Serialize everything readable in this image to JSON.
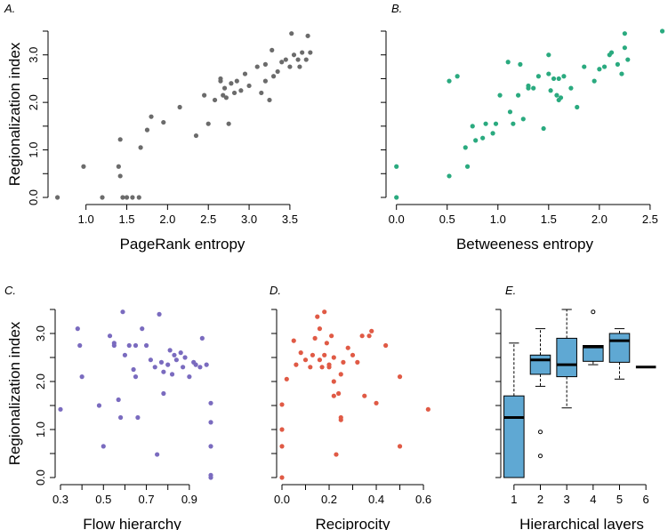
{
  "colors": {
    "pagerank": "#6b6b6b",
    "betweenness": "#2aaa7f",
    "flow": "#7a6bbf",
    "reciprocity": "#e05a45",
    "box_fill": "#5fa8d3"
  },
  "chart_data": [
    {
      "type": "scatter",
      "panel_label": "A.",
      "xlabel": "PageRank entropy",
      "ylabel": "Regionalization index",
      "xlim": [
        0.6,
        3.85
      ],
      "ylim": [
        0,
        3.5
      ],
      "x_ticks": [
        "1.0",
        "1.5",
        "2.0",
        "2.5",
        "3.0",
        "3.5"
      ],
      "y_ticks": [
        "0.0",
        "1.0",
        "2.0",
        "3.0"
      ],
      "x": [
        0.65,
        0.97,
        1.2,
        1.4,
        1.42,
        1.45,
        1.5,
        1.57,
        1.65,
        1.42,
        1.67,
        1.75,
        1.8,
        1.95,
        2.15,
        2.35,
        2.45,
        2.5,
        2.58,
        2.65,
        2.68,
        2.7,
        2.72,
        2.75,
        2.78,
        2.82,
        2.85,
        2.9,
        2.95,
        3.0,
        3.1,
        3.15,
        3.2,
        3.25,
        3.28,
        3.3,
        3.35,
        3.4,
        3.45,
        3.5,
        3.52,
        3.55,
        3.6,
        3.62,
        3.65,
        3.7,
        3.72,
        3.75,
        3.2,
        2.65
      ],
      "y": [
        0.0,
        0.65,
        0.0,
        0.65,
        0.45,
        0.0,
        0.0,
        0.0,
        0.0,
        1.22,
        1.05,
        1.42,
        1.7,
        1.58,
        1.9,
        1.3,
        2.15,
        1.55,
        2.05,
        2.45,
        2.15,
        2.3,
        2.1,
        1.55,
        2.4,
        2.2,
        2.45,
        2.25,
        2.6,
        2.35,
        2.75,
        2.2,
        2.45,
        2.05,
        3.1,
        2.55,
        2.65,
        2.85,
        2.9,
        2.75,
        3.45,
        3.0,
        2.9,
        2.75,
        3.05,
        2.9,
        3.4,
        3.05,
        2.8,
        2.5
      ]
    },
    {
      "type": "scatter",
      "panel_label": "B.",
      "xlabel": "Betweeness entropy",
      "ylabel": "",
      "xlim": [
        -0.05,
        2.65
      ],
      "ylim": [
        0,
        3.5
      ],
      "x_ticks": [
        "0.0",
        "0.5",
        "1.0",
        "1.5",
        "2.0",
        "2.5"
      ],
      "y_ticks": [],
      "x": [
        0.0,
        0.0,
        0.52,
        0.52,
        0.6,
        0.68,
        0.7,
        0.75,
        0.78,
        0.85,
        0.88,
        0.95,
        0.98,
        1.02,
        1.1,
        1.12,
        1.15,
        1.2,
        1.22,
        1.25,
        1.3,
        1.35,
        1.4,
        1.45,
        1.5,
        1.52,
        1.55,
        1.58,
        1.6,
        1.62,
        1.65,
        1.72,
        1.78,
        1.85,
        1.95,
        2.0,
        2.05,
        2.1,
        2.12,
        2.18,
        2.22,
        2.25,
        2.28,
        2.62,
        1.5,
        1.3,
        1.6,
        2.25
      ],
      "y": [
        0.0,
        0.65,
        0.45,
        2.45,
        2.55,
        1.05,
        0.65,
        1.5,
        1.2,
        1.25,
        1.55,
        1.35,
        1.55,
        2.15,
        2.85,
        1.8,
        1.55,
        2.15,
        2.8,
        1.65,
        2.35,
        2.3,
        2.55,
        1.45,
        3.0,
        2.25,
        2.5,
        2.15,
        2.05,
        2.1,
        2.55,
        2.3,
        1.9,
        2.75,
        2.45,
        2.7,
        2.75,
        3.0,
        3.05,
        2.8,
        2.6,
        3.45,
        2.9,
        3.5,
        2.6,
        2.3,
        2.5,
        3.15
      ]
    },
    {
      "type": "scatter",
      "panel_label": "C.",
      "xlabel": "Flow hierarchy",
      "ylabel": "Regionalization index",
      "xlim": [
        0.3,
        1.0
      ],
      "ylim": [
        0,
        3.5
      ],
      "x_ticks": [
        "0.3",
        "0.5",
        "0.7",
        "0.9"
      ],
      "y_ticks": [
        "0.0",
        "1.0",
        "2.0",
        "3.0"
      ],
      "x": [
        0.3,
        0.38,
        0.39,
        0.4,
        0.48,
        0.5,
        0.53,
        0.55,
        0.57,
        0.58,
        0.59,
        0.6,
        0.62,
        0.64,
        0.65,
        0.66,
        0.68,
        0.7,
        0.72,
        0.74,
        0.75,
        0.76,
        0.77,
        0.78,
        0.78,
        0.8,
        0.81,
        0.82,
        0.83,
        0.84,
        0.86,
        0.87,
        0.88,
        0.9,
        0.92,
        0.93,
        0.95,
        0.96,
        0.98,
        1.0,
        1.0,
        1.0,
        1.0,
        1.0,
        0.65,
        0.55
      ],
      "y": [
        1.42,
        3.1,
        2.75,
        2.1,
        1.5,
        0.65,
        2.95,
        2.75,
        1.62,
        1.25,
        3.45,
        2.55,
        2.75,
        2.25,
        2.1,
        1.25,
        3.1,
        2.75,
        2.45,
        2.3,
        0.48,
        3.4,
        2.4,
        2.2,
        1.75,
        2.35,
        2.65,
        2.15,
        2.55,
        2.45,
        2.6,
        2.3,
        2.5,
        2.1,
        2.4,
        2.35,
        2.3,
        2.9,
        2.35,
        1.55,
        1.15,
        0.65,
        0.05,
        0.0,
        2.75,
        2.8
      ]
    },
    {
      "type": "scatter",
      "panel_label": "D.",
      "xlabel": "Reciprocity",
      "ylabel": "",
      "xlim": [
        0.0,
        0.63
      ],
      "ylim": [
        0,
        3.5
      ],
      "x_ticks": [
        "0.0",
        "0.2",
        "0.4",
        "0.6"
      ],
      "y_ticks": [],
      "x": [
        0.0,
        0.0,
        0.0,
        0.0,
        0.02,
        0.05,
        0.06,
        0.08,
        0.1,
        0.12,
        0.13,
        0.14,
        0.15,
        0.16,
        0.17,
        0.18,
        0.19,
        0.2,
        0.21,
        0.22,
        0.22,
        0.23,
        0.24,
        0.25,
        0.25,
        0.26,
        0.28,
        0.3,
        0.32,
        0.34,
        0.35,
        0.37,
        0.38,
        0.4,
        0.44,
        0.5,
        0.5,
        0.62,
        0.16,
        0.2,
        0.22,
        0.25,
        0.18
      ],
      "y": [
        0.0,
        0.65,
        1.0,
        1.52,
        2.05,
        2.85,
        2.35,
        2.6,
        2.45,
        2.3,
        2.55,
        2.9,
        3.35,
        2.45,
        2.3,
        3.45,
        2.8,
        2.35,
        2.95,
        2.0,
        1.7,
        0.48,
        1.75,
        1.25,
        1.2,
        2.4,
        2.7,
        2.55,
        2.4,
        2.95,
        1.7,
        2.95,
        3.05,
        1.55,
        2.75,
        2.1,
        0.65,
        1.42,
        3.1,
        2.3,
        2.5,
        2.15,
        2.55
      ]
    },
    {
      "type": "box",
      "panel_label": "E.",
      "xlabel": "Hierarchical layers",
      "ylabel": "",
      "ylim": [
        0,
        3.5
      ],
      "categories": [
        "1",
        "2",
        "3",
        "4",
        "5",
        "6"
      ],
      "boxes": [
        {
          "min": 0.0,
          "q1": 0.0,
          "median": 1.25,
          "q3": 1.7,
          "max": 2.8,
          "outliers": []
        },
        {
          "min": 1.9,
          "q1": 2.15,
          "median": 2.45,
          "q3": 2.55,
          "max": 3.1,
          "outliers": [
            0.95,
            0.45
          ]
        },
        {
          "min": 1.45,
          "q1": 2.1,
          "median": 2.35,
          "q3": 2.9,
          "max": 3.5,
          "outliers": []
        },
        {
          "min": 2.35,
          "q1": 2.42,
          "median": 2.72,
          "q3": 2.75,
          "max": 2.75,
          "outliers": [
            3.45
          ]
        },
        {
          "min": 2.05,
          "q1": 2.4,
          "median": 2.85,
          "q3": 3.0,
          "max": 3.1,
          "outliers": []
        },
        {
          "min": 2.3,
          "q1": 2.3,
          "median": 2.3,
          "q3": 2.3,
          "max": 2.3,
          "outliers": []
        }
      ]
    }
  ]
}
